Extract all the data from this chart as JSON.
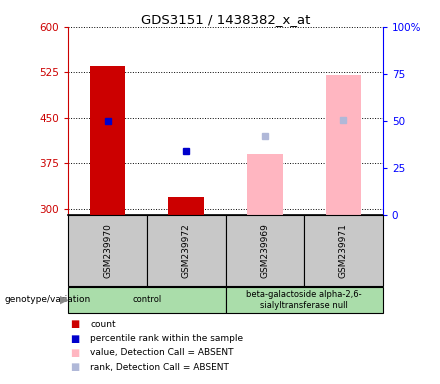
{
  "title": "GDS3151 / 1438382_x_at",
  "samples": [
    "GSM239970",
    "GSM239972",
    "GSM239969",
    "GSM239971"
  ],
  "ylim_left": [
    290,
    600
  ],
  "yticks_left": [
    300,
    375,
    450,
    525,
    600
  ],
  "yticks_right": [
    0,
    25,
    50,
    75,
    100
  ],
  "bar_present": {
    "GSM239970": {
      "value": 535
    },
    "GSM239972": {
      "value": 320
    }
  },
  "rank_present": {
    "GSM239970": {
      "value": 445
    },
    "GSM239972": {
      "value": 395
    }
  },
  "bar_absent": {
    "GSM239969": {
      "value": 390
    },
    "GSM239971": {
      "value": 520
    }
  },
  "rank_absent": {
    "GSM239969": {
      "value": 420
    },
    "GSM239971": {
      "value": 447
    }
  },
  "count_color": "#cc0000",
  "rank_color": "#0000cc",
  "absent_bar_color": "#ffb6c1",
  "absent_rank_color": "#b0b8d8",
  "bg_sample": "#c8c8c8",
  "bg_group": "#aaddaa",
  "legend_items": [
    {
      "label": "count",
      "color": "#cc0000"
    },
    {
      "label": "percentile rank within the sample",
      "color": "#0000cc"
    },
    {
      "label": "value, Detection Call = ABSENT",
      "color": "#ffb6c1"
    },
    {
      "label": "rank, Detection Call = ABSENT",
      "color": "#b0b8d8"
    }
  ],
  "genotype_label": "genotype/variation",
  "groups": [
    {
      "label": "control",
      "start": 0,
      "end": 2
    },
    {
      "label": "beta-galactoside alpha-2,6-\nsialyltransferase null",
      "start": 2,
      "end": 4
    }
  ]
}
